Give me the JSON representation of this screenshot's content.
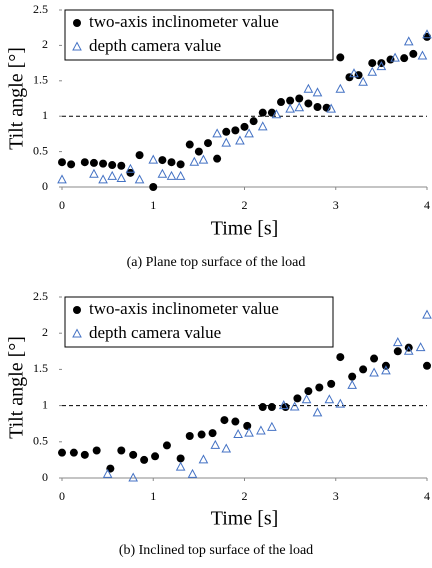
{
  "chart_data": [
    {
      "type": "scatter",
      "caption": "(a) Plane top surface of the load",
      "x_label": "Time [s]",
      "y_label": "Tilt angle [°]",
      "xlim": [
        0,
        4
      ],
      "xticks": [
        0,
        1,
        2,
        3,
        4
      ],
      "ylim": [
        0,
        2.5
      ],
      "yticks": [
        0,
        0.5,
        1,
        1.5,
        2,
        2.5
      ],
      "reference_line": 1,
      "legend": "upper left",
      "series": [
        {
          "name": "two-axis inclinometer value",
          "marker": "circle",
          "color": "#000000",
          "x": [
            0,
            0.1,
            0.25,
            0.35,
            0.45,
            0.55,
            0.65,
            0.75,
            0.85,
            1.0,
            1.1,
            1.2,
            1.3,
            1.4,
            1.5,
            1.6,
            1.7,
            1.8,
            1.9,
            2.0,
            2.1,
            2.2,
            2.3,
            2.4,
            2.5,
            2.6,
            2.7,
            2.8,
            2.9,
            3.05,
            3.15,
            3.25,
            3.4,
            3.5,
            3.6,
            3.75,
            3.85,
            4.0
          ],
          "values": [
            0.35,
            0.32,
            0.35,
            0.34,
            0.33,
            0.31,
            0.3,
            0.2,
            0.45,
            0.0,
            0.38,
            0.35,
            0.32,
            0.6,
            0.5,
            0.62,
            0.4,
            0.78,
            0.8,
            0.85,
            0.93,
            1.05,
            1.05,
            1.2,
            1.22,
            1.25,
            1.18,
            1.13,
            1.12,
            1.83,
            1.55,
            1.58,
            1.75,
            1.75,
            1.8,
            1.82,
            1.88,
            2.12
          ]
        },
        {
          "name": "depth camera value",
          "marker": "triangle",
          "color": "#4472c4",
          "x": [
            0,
            0.35,
            0.45,
            0.55,
            0.65,
            0.75,
            0.85,
            1.0,
            1.1,
            1.2,
            1.3,
            1.45,
            1.55,
            1.7,
            1.8,
            1.95,
            2.05,
            2.2,
            2.35,
            2.5,
            2.6,
            2.7,
            2.8,
            2.95,
            3.05,
            3.2,
            3.3,
            3.4,
            3.5,
            3.65,
            3.8,
            3.95,
            4.0
          ],
          "values": [
            0.1,
            0.18,
            0.1,
            0.15,
            0.12,
            0.25,
            0.1,
            0.38,
            0.18,
            0.15,
            0.15,
            0.35,
            0.38,
            0.75,
            0.62,
            0.65,
            0.75,
            0.85,
            1.02,
            1.1,
            1.12,
            1.38,
            1.33,
            1.1,
            1.38,
            1.6,
            1.48,
            1.62,
            1.7,
            1.82,
            2.05,
            1.85,
            2.15
          ]
        }
      ]
    },
    {
      "type": "scatter",
      "caption": "(b) Inclined top surface of the load",
      "x_label": "Time [s]",
      "y_label": "Tilt angle [°]",
      "xlim": [
        0,
        4
      ],
      "xticks": [
        0,
        1,
        2,
        3,
        4
      ],
      "ylim": [
        0,
        2.5
      ],
      "yticks": [
        0,
        0.5,
        1,
        1.5,
        2,
        2.5
      ],
      "reference_line": 1,
      "legend": "upper left",
      "series": [
        {
          "name": "two-axis inclinometer value",
          "marker": "circle",
          "color": "#000000",
          "x": [
            0,
            0.13,
            0.25,
            0.38,
            0.53,
            0.65,
            0.78,
            0.9,
            1.02,
            1.15,
            1.3,
            1.4,
            1.53,
            1.65,
            1.78,
            1.9,
            2.03,
            2.2,
            2.3,
            2.45,
            2.58,
            2.7,
            2.82,
            2.95,
            3.05,
            3.18,
            3.3,
            3.42,
            3.55,
            3.68,
            3.8,
            4.0
          ],
          "values": [
            0.35,
            0.35,
            0.32,
            0.38,
            0.13,
            0.38,
            0.32,
            0.25,
            0.3,
            0.45,
            0.27,
            0.58,
            0.6,
            0.62,
            0.8,
            0.78,
            0.72,
            0.98,
            0.98,
            0.98,
            1.1,
            1.2,
            1.25,
            1.3,
            1.67,
            1.4,
            1.5,
            1.65,
            1.55,
            1.75,
            1.8,
            1.55
          ]
        },
        {
          "name": "depth camera value",
          "marker": "triangle",
          "color": "#4472c4",
          "x": [
            0.5,
            0.78,
            1.3,
            1.43,
            1.55,
            1.68,
            1.8,
            1.93,
            2.05,
            2.18,
            2.3,
            2.43,
            2.55,
            2.68,
            2.8,
            2.93,
            3.05,
            3.18,
            3.42,
            3.55,
            3.68,
            3.8,
            3.93,
            4.0
          ],
          "values": [
            0.05,
            0.0,
            0.15,
            0.05,
            0.25,
            0.45,
            0.4,
            0.6,
            0.62,
            0.65,
            0.7,
            1.0,
            0.98,
            1.08,
            0.9,
            1.08,
            1.02,
            1.28,
            1.45,
            1.48,
            1.87,
            1.75,
            1.8,
            2.25
          ]
        }
      ]
    }
  ]
}
